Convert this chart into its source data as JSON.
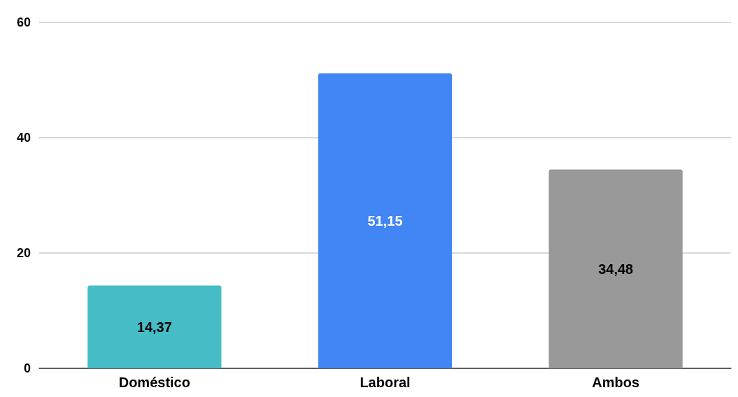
{
  "chart_data": {
    "type": "bar",
    "categories": [
      "Doméstico",
      "Laboral",
      "Ambos"
    ],
    "values": [
      14.37,
      51.15,
      34.48
    ],
    "colors": [
      "#46bdc6",
      "#4285f4",
      "#999999"
    ],
    "value_labels": [
      "14,37",
      "51,15",
      "34,48"
    ],
    "ylim": [
      0,
      60
    ],
    "yticks": [
      0,
      20,
      40,
      60
    ],
    "grid": "y"
  }
}
